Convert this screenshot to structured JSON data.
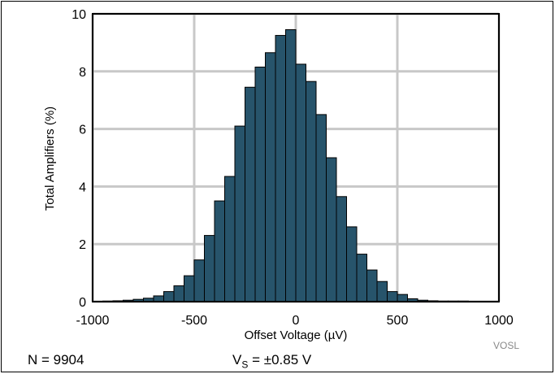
{
  "chart_data": {
    "type": "bar",
    "xlabel": "Offset Voltage (µV)",
    "ylabel": "Total Amplifiers (%)",
    "xlim": [
      -1000,
      1000
    ],
    "ylim": [
      0,
      10
    ],
    "xticks": [
      -1000,
      -500,
      0,
      500,
      1000
    ],
    "yticks": [
      0,
      2,
      4,
      6,
      8,
      10
    ],
    "grid": true,
    "bin_width": 50,
    "bin_centers": [
      -925,
      -875,
      -825,
      -775,
      -725,
      -675,
      -625,
      -575,
      -525,
      -475,
      -425,
      -375,
      -325,
      -275,
      -225,
      -175,
      -125,
      -75,
      -25,
      25,
      75,
      125,
      175,
      225,
      275,
      325,
      375,
      425,
      475,
      525,
      575,
      625,
      675,
      725,
      775,
      825
    ],
    "values": [
      0.02,
      0.03,
      0.05,
      0.08,
      0.12,
      0.2,
      0.35,
      0.55,
      0.9,
      1.45,
      2.3,
      3.5,
      4.35,
      6.1,
      7.45,
      8.15,
      8.65,
      9.25,
      9.45,
      8.25,
      7.65,
      6.5,
      5.0,
      3.65,
      2.6,
      1.65,
      1.1,
      0.7,
      0.35,
      0.25,
      0.1,
      0.05,
      0.03,
      0.02,
      0.02,
      0.02
    ],
    "bar_color": "#27546b"
  },
  "footer": {
    "n_label": "N = 9904",
    "vs_prefix": "V",
    "vs_sub": "S",
    "vs_value": " = ±0.85 V",
    "tag": "VOSL"
  }
}
